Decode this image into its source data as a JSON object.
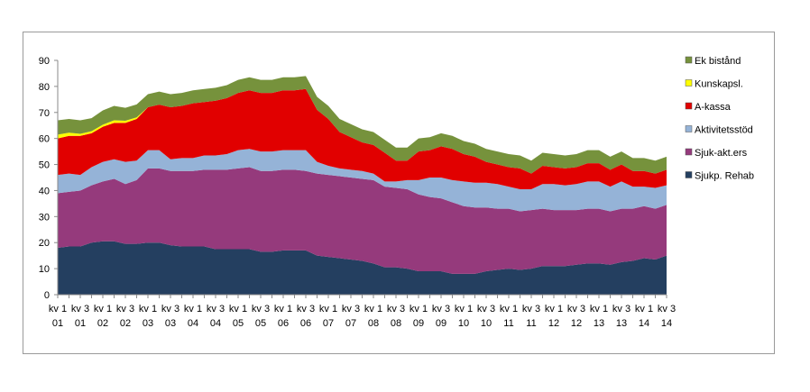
{
  "chart_data": {
    "type": "area",
    "stacked": true,
    "title": "",
    "xlabel": "",
    "ylabel": "",
    "ylim": [
      0,
      90
    ],
    "yticks": [
      0,
      10,
      20,
      30,
      40,
      50,
      60,
      70,
      80,
      90
    ],
    "grid": false,
    "legend_position": "right",
    "x_tick_labels": [
      [
        "kv 1",
        "01"
      ],
      [
        "kv 3",
        "01"
      ],
      [
        "kv 1",
        "02"
      ],
      [
        "kv 3",
        "02"
      ],
      [
        "kv 1",
        "03"
      ],
      [
        "kv 3",
        "03"
      ],
      [
        "kv 1",
        "04"
      ],
      [
        "kv 3",
        "04"
      ],
      [
        "kv 1",
        "05"
      ],
      [
        "kv 3",
        "05"
      ],
      [
        "kv 1",
        "06"
      ],
      [
        "kv 3",
        "06"
      ],
      [
        "kv 1",
        "07"
      ],
      [
        "kv 3",
        "07"
      ],
      [
        "kv 1",
        "08"
      ],
      [
        "kv 3",
        "08"
      ],
      [
        "kv 1",
        "09"
      ],
      [
        "kv 3",
        "09"
      ],
      [
        "kv 1",
        "10"
      ],
      [
        "kv 3",
        "10"
      ],
      [
        "kv 1",
        "11"
      ],
      [
        "kv 3",
        "11"
      ],
      [
        "kv 1",
        "12"
      ],
      [
        "kv 3",
        "12"
      ],
      [
        "kv 1",
        "13"
      ],
      [
        "kv 3",
        "13"
      ],
      [
        "kv 1",
        "14"
      ],
      [
        "kv 3",
        "14"
      ]
    ],
    "x_tick_every": 2,
    "series": [
      {
        "name": "Sjukp. Rehab",
        "color": "#243f60",
        "values": [
          18,
          18.5,
          18.5,
          20,
          20.5,
          20.5,
          19.5,
          19.5,
          20,
          20,
          19,
          18.5,
          18.5,
          18.5,
          17.5,
          17.5,
          17.5,
          17.5,
          16.5,
          16.5,
          17,
          17,
          17,
          15,
          14.5,
          14,
          13.5,
          13,
          12,
          10.5,
          10.5,
          10,
          9,
          9,
          9,
          8,
          8,
          8,
          9,
          9.5,
          10,
          9.5,
          10,
          11,
          11,
          11,
          11.5,
          12,
          12,
          11.5,
          12.5,
          13,
          14,
          13.5,
          15
        ]
      },
      {
        "name": "Sjuk-akt.ers",
        "color": "#953a7c",
        "values": [
          21,
          21,
          21.5,
          22,
          23,
          24,
          23,
          24.5,
          28.5,
          28.5,
          28.5,
          29,
          29,
          29.5,
          30.5,
          30.5,
          31,
          31.5,
          31,
          31,
          31,
          31,
          30.5,
          31.5,
          31.5,
          31.5,
          31.5,
          31.5,
          32,
          31,
          30.5,
          30.5,
          29.5,
          28.5,
          28,
          27.5,
          26,
          25.5,
          24.5,
          23.5,
          23,
          22.5,
          22.5,
          22,
          21.5,
          21.5,
          21,
          21,
          21,
          20.5,
          20.5,
          20,
          20,
          19.5,
          19.5
        ]
      },
      {
        "name": "Aktivitetsstöd",
        "color": "#95b3d7",
        "values": [
          7,
          7,
          6,
          7,
          7.5,
          7.5,
          8.5,
          7.5,
          7,
          7,
          4.5,
          5,
          5,
          5.5,
          5.5,
          6,
          7,
          7,
          7.5,
          7.5,
          7.5,
          7.5,
          8,
          4.5,
          3.5,
          3,
          3,
          3,
          2.5,
          2,
          2.5,
          3.5,
          5.5,
          7.5,
          8,
          8.5,
          9.5,
          9.5,
          9.5,
          9.5,
          8.5,
          8.5,
          8,
          9.5,
          10,
          9.5,
          10,
          10.5,
          10.5,
          9.5,
          10.5,
          8.5,
          7.5,
          8,
          7.5
        ]
      },
      {
        "name": "A-kassa",
        "color": "#e10000",
        "values": [
          14,
          14.5,
          15,
          13,
          13.5,
          14,
          15,
          16,
          16.5,
          17.5,
          20,
          20,
          21,
          20.5,
          21,
          21.5,
          22,
          22.5,
          22.5,
          22.5,
          23,
          23,
          23.5,
          20,
          18,
          14,
          12.5,
          11,
          11,
          11,
          8,
          7.5,
          11,
          10.5,
          12,
          12,
          10.5,
          10,
          8,
          7.5,
          7.5,
          8,
          6,
          7,
          6.5,
          6.5,
          6.5,
          7,
          7,
          6.5,
          6.5,
          6,
          6,
          5.5,
          6
        ]
      },
      {
        "name": "Kunskapsl.",
        "color": "#ffff00",
        "values": [
          1.5,
          1.2,
          0.8,
          0.8,
          0.8,
          1,
          0.8,
          0.6,
          0,
          0,
          0,
          0,
          0,
          0,
          0,
          0,
          0,
          0,
          0,
          0,
          0,
          0,
          0,
          0,
          0,
          0,
          0,
          0,
          0,
          0,
          0,
          0,
          0,
          0,
          0,
          0,
          0,
          0,
          0,
          0,
          0,
          0,
          0,
          0,
          0,
          0,
          0,
          0,
          0,
          0,
          0,
          0,
          0,
          0,
          0
        ]
      },
      {
        "name": "Ek bistånd",
        "color": "#76923c",
        "values": [
          5.5,
          5.3,
          5.2,
          5,
          5.5,
          5.5,
          5,
          5,
          5,
          5,
          5,
          5,
          5,
          5,
          5,
          5,
          5,
          5,
          5,
          5,
          5,
          5,
          5,
          5,
          5,
          5,
          5,
          5,
          5,
          5,
          5,
          5,
          5,
          5,
          5,
          5,
          5,
          5,
          5,
          5,
          5,
          5,
          5,
          5,
          5,
          5,
          5,
          5,
          5,
          5,
          5,
          5,
          5,
          5,
          5
        ]
      }
    ]
  }
}
